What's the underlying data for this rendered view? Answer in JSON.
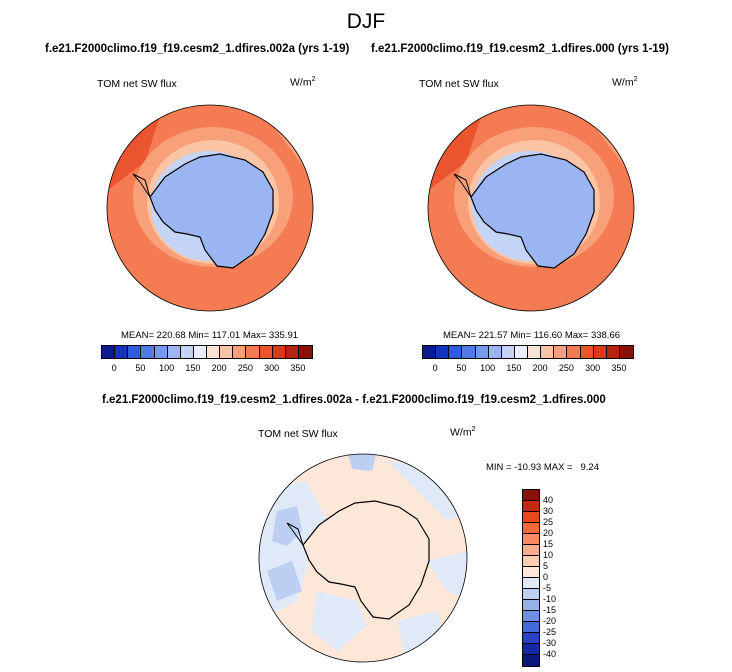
{
  "season": "DJF",
  "panels": [
    {
      "title": "f.e21.F2000climo.f19_f19.cesm2_1.dfires.002a (yrs 1-19)",
      "variable": "TOM net SW flux",
      "units": "W/m",
      "units_sup": "2",
      "stats": "MEAN= 220.68  Min= 117.01  Max= 335.91"
    },
    {
      "title": "f.e21.F2000climo.f19_f19.cesm2_1.dfires.000 (yrs 1-19)",
      "variable": "TOM net SW flux",
      "units": "W/m",
      "units_sup": "2",
      "stats": "MEAN= 221.57  Min= 116.60  Max= 338.66"
    }
  ],
  "diff": {
    "title": "f.e21.F2000climo.f19_f19.cesm2_1.dfires.002a - f.e21.F2000climo.f19_f19.cesm2_1.dfires.000",
    "variable": "TOM net SW flux",
    "units": "W/m",
    "units_sup": "2",
    "stats": "MIN = -10.93 MAX =   9.24"
  },
  "colorbar_main": {
    "ticks": [
      "0",
      "50",
      "100",
      "150",
      "200",
      "250",
      "300",
      "350"
    ],
    "colors": [
      "#0b1a8c",
      "#1634c2",
      "#2f5be0",
      "#4f7ce8",
      "#7399ee",
      "#9ab5f2",
      "#c3d4f6",
      "#e8eef9",
      "#fde3d3",
      "#fbc4a4",
      "#f8a07a",
      "#f47b52",
      "#ea5530",
      "#d93a1c",
      "#b42512",
      "#8a1207"
    ]
  },
  "colorbar_diff": {
    "ticks": [
      "40",
      "30",
      "25",
      "20",
      "15",
      "10",
      "5",
      "0",
      "-5",
      "-10",
      "-15",
      "-20",
      "-25",
      "-30",
      "-40"
    ],
    "colors": [
      "#8a1207",
      "#c42a10",
      "#e8481e",
      "#f2693e",
      "#f68b64",
      "#f9ad8c",
      "#fccdb2",
      "#fde7d8",
      "#dfe9f7",
      "#bccff2",
      "#96b2ec",
      "#6d90e3",
      "#4469d8",
      "#2743c4",
      "#1329a3",
      "#0a1678"
    ]
  },
  "map_colors": {
    "ocean_warm": "#f47b52",
    "ocean_mid": "#f8a07a",
    "ice_edge": "#fbc4a4",
    "sea_ice": "#c3d4f6",
    "continent": "#9ab5f2",
    "diff_neutral": "#fde7d8",
    "diff_neg": "#dfe9f7",
    "diff_neg2": "#bccff2"
  }
}
